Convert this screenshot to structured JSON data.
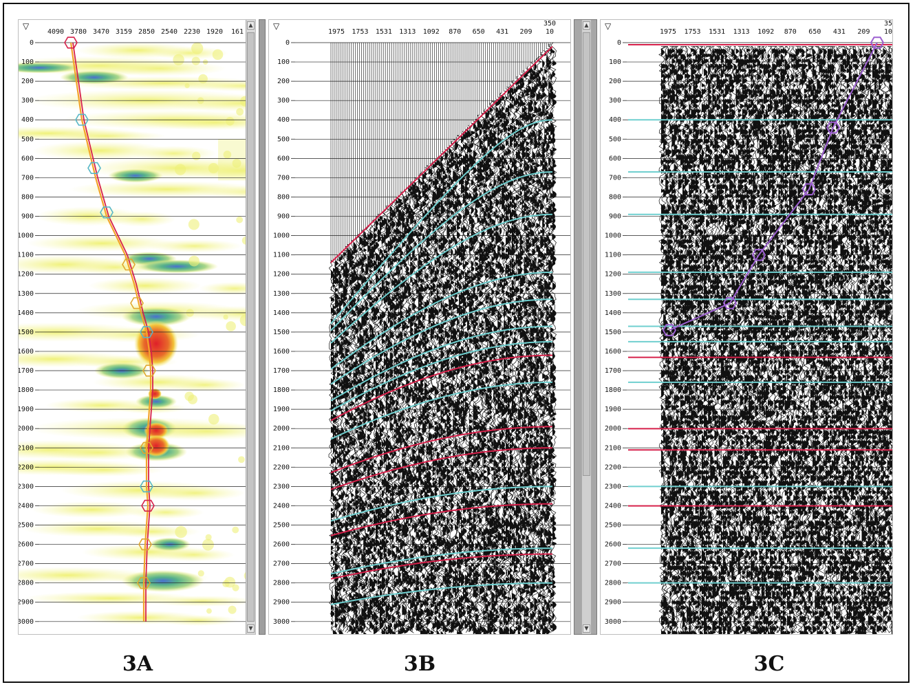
{
  "panels": {
    "a": {
      "label": "3A",
      "header_ticks": [
        "4090",
        "3780",
        "3470",
        "3159",
        "2850",
        "2540",
        "2230",
        "1920",
        "161"
      ],
      "time_ticks": [
        "0",
        "100",
        "200",
        "300",
        "400",
        "500",
        "600",
        "700",
        "800",
        "900",
        "1000",
        "1100",
        "1200",
        "1300",
        "1400",
        "1500",
        "1600",
        "1700",
        "1800",
        "1900",
        "2000",
        "2100",
        "2200",
        "2300",
        "2400",
        "2500",
        "2600",
        "2700",
        "2800",
        "2900",
        "3000"
      ]
    },
    "b": {
      "label": "3B",
      "header_ticks": [
        "1975",
        "1753",
        "1531",
        "1313",
        "1092",
        "870",
        "650",
        "431",
        "209",
        "10"
      ],
      "header_top": "350",
      "time_ticks": [
        "0",
        "100",
        "200",
        "300",
        "400",
        "500",
        "600",
        "700",
        "800",
        "900",
        "1000",
        "1100",
        "1200",
        "1300",
        "1400",
        "1500",
        "1600",
        "1700",
        "1800",
        "1900",
        "2000",
        "2100",
        "2200",
        "2300",
        "2400",
        "2500",
        "2600",
        "2700",
        "2800",
        "2900",
        "3000"
      ]
    },
    "c": {
      "label": "3C",
      "header_ticks": [
        "1975",
        "1753",
        "1531",
        "1313",
        "1092",
        "870",
        "650",
        "431",
        "209",
        "10"
      ],
      "header_top": "35",
      "time_ticks": [
        "0",
        "100",
        "200",
        "300",
        "400",
        "500",
        "600",
        "700",
        "800",
        "900",
        "1000",
        "1100",
        "1200",
        "1300",
        "1400",
        "1500",
        "1600",
        "1700",
        "1800",
        "1900",
        "2000",
        "2100",
        "2200",
        "2300",
        "2400",
        "2500",
        "2600",
        "2700",
        "2800",
        "2900",
        "3000"
      ]
    }
  },
  "colors": {
    "red_horizon": "#d6204a",
    "cyan_horizon": "#6fcfcf",
    "purple_pick": "#9c5fd0",
    "trace_black": "#111111"
  },
  "icons": {
    "corner_marker": "triangle-down-icon"
  },
  "horizons": {
    "red_zero_offset_ms": [
      0,
      1620,
      1990,
      2100,
      2390
    ],
    "cyan_zero_offset_ms": [
      400,
      670,
      890,
      1190,
      1330,
      1470,
      1550,
      1760,
      2300,
      2620,
      2800
    ],
    "pick_ms": [
      0,
      440,
      760,
      1100,
      1350,
      1490
    ]
  }
}
